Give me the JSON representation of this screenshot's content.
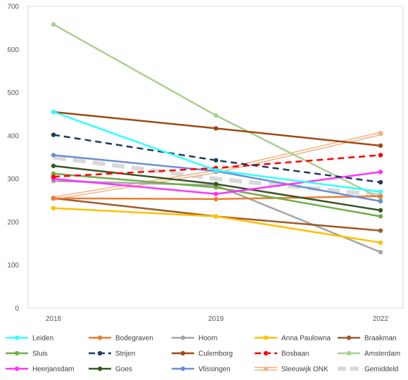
{
  "chart_data": {
    "type": "line",
    "title": "",
    "xlabel": "",
    "ylabel": "",
    "x": [
      "2018",
      "2019",
      "2022"
    ],
    "ylim": [
      0,
      700
    ],
    "yticks": [
      0,
      100,
      200,
      300,
      400,
      500,
      600,
      700
    ],
    "grid": false,
    "legend_position": "bottom",
    "series": [
      {
        "name": "Leiden",
        "values": [
          455,
          320,
          270
        ],
        "color": "#33FFFF",
        "style": "solid"
      },
      {
        "name": "Bodegraven",
        "values": [
          255,
          253,
          260
        ],
        "color": "#ED7D31",
        "style": "solid"
      },
      {
        "name": "Hoorn",
        "values": [
          295,
          285,
          130
        ],
        "color": "#A5A5A5",
        "style": "solid"
      },
      {
        "name": "Anna Paulowna",
        "values": [
          232,
          213,
          152
        ],
        "color": "#FFC000",
        "style": "solid"
      },
      {
        "name": "Braakman",
        "values": [
          255,
          213,
          180
        ],
        "color": "#9E5A2B",
        "style": "solid"
      },
      {
        "name": "Sluis",
        "values": [
          312,
          280,
          213
        ],
        "color": "#70AD47",
        "style": "solid"
      },
      {
        "name": "Strijen",
        "values": [
          402,
          343,
          292
        ],
        "color": "#1F3864",
        "style": "dashed"
      },
      {
        "name": "Culemborg",
        "values": [
          455,
          417,
          377
        ],
        "color": "#9C4A12",
        "style": "solid"
      },
      {
        "name": "Bosbaan",
        "values": [
          305,
          325,
          355
        ],
        "color": "#FF0000",
        "style": "dashed"
      },
      {
        "name": "Amsterdam",
        "values": [
          658,
          447,
          255
        ],
        "color": "#A9D18E",
        "style": "solid"
      },
      {
        "name": "Heerjansdam",
        "values": [
          300,
          265,
          316
        ],
        "color": "#FF33FF",
        "style": "solid"
      },
      {
        "name": "Goes",
        "values": [
          330,
          288,
          227
        ],
        "color": "#375623",
        "style": "solid"
      },
      {
        "name": "Vlissingen",
        "values": [
          355,
          318,
          248
        ],
        "color": "#6B8FD1",
        "style": "solid"
      },
      {
        "name": "Sleeuwijk ONK",
        "values": [
          255,
          317,
          405
        ],
        "color": "#F4B183",
        "style": "double"
      },
      {
        "name": "Gemiddeld",
        "values": [
          350,
          300,
          262
        ],
        "color": "#D9D9D9",
        "style": "thickdash"
      }
    ]
  }
}
